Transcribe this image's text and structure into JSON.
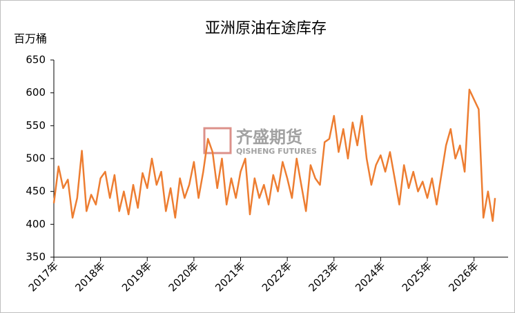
{
  "chart_data": {
    "type": "line",
    "title": "亚洲原油在途库存",
    "y_label": "百万桶",
    "watermark": {
      "name": "齐盛期货",
      "en": "QISHENG FUTURES"
    },
    "x": [
      2017.0,
      2017.1,
      2017.2,
      2017.3,
      2017.4,
      2017.5,
      2017.6,
      2017.7,
      2017.8,
      2017.9,
      2018.0,
      2018.1,
      2018.2,
      2018.3,
      2018.4,
      2018.5,
      2018.6,
      2018.7,
      2018.8,
      2018.9,
      2019.0,
      2019.1,
      2019.2,
      2019.3,
      2019.4,
      2019.5,
      2019.6,
      2019.7,
      2019.8,
      2019.9,
      2020.0,
      2020.1,
      2020.2,
      2020.3,
      2020.4,
      2020.5,
      2020.6,
      2020.7,
      2020.8,
      2020.9,
      2021.0,
      2021.1,
      2021.2,
      2021.3,
      2021.4,
      2021.5,
      2021.6,
      2021.7,
      2021.8,
      2021.9,
      2022.0,
      2022.1,
      2022.2,
      2022.3,
      2022.4,
      2022.5,
      2022.6,
      2022.7,
      2022.8,
      2022.9,
      2023.0,
      2023.1,
      2023.2,
      2023.3,
      2023.4,
      2023.5,
      2023.6,
      2023.7,
      2023.8,
      2023.9,
      2024.0,
      2024.1,
      2024.2,
      2024.3,
      2024.4,
      2024.5,
      2024.6,
      2024.7,
      2024.8,
      2024.9,
      2025.0,
      2025.1,
      2025.2,
      2025.3,
      2025.4,
      2025.5,
      2025.6,
      2025.7,
      2025.8,
      2025.9,
      2026.0,
      2026.1,
      2026.2,
      2026.3,
      2026.4,
      2026.45
    ],
    "series": [
      {
        "name": "亚洲原油在途库存",
        "color": "#ed7d31",
        "values": [
          432,
          488,
          455,
          468,
          410,
          440,
          512,
          420,
          445,
          430,
          470,
          480,
          440,
          475,
          420,
          450,
          415,
          460,
          425,
          478,
          455,
          500,
          460,
          480,
          420,
          455,
          410,
          470,
          440,
          460,
          495,
          440,
          480,
          530,
          510,
          455,
          500,
          430,
          470,
          440,
          480,
          500,
          415,
          470,
          440,
          460,
          430,
          475,
          450,
          495,
          470,
          440,
          500,
          460,
          420,
          490,
          470,
          460,
          525,
          530,
          565,
          510,
          545,
          500,
          555,
          520,
          565,
          500,
          460,
          490,
          505,
          480,
          510,
          470,
          430,
          490,
          455,
          480,
          450,
          465,
          440,
          470,
          430,
          475,
          520,
          545,
          500,
          520,
          480,
          605,
          590,
          575,
          410,
          450,
          405,
          440
        ]
      }
    ],
    "xlim": [
      2017,
      2026.73
    ],
    "xticks": [
      {
        "value": 2017,
        "label": "2017年"
      },
      {
        "value": 2018,
        "label": "2018年"
      },
      {
        "value": 2019,
        "label": "2019年"
      },
      {
        "value": 2020,
        "label": "2020年"
      },
      {
        "value": 2021,
        "label": "2021年"
      },
      {
        "value": 2022,
        "label": "2022年"
      },
      {
        "value": 2023,
        "label": "2023年"
      },
      {
        "value": 2024,
        "label": "2024年"
      },
      {
        "value": 2025,
        "label": "2025年"
      },
      {
        "value": 2026,
        "label": "2026年"
      }
    ],
    "ylim": [
      350,
      650
    ],
    "yticks": [
      350,
      400,
      450,
      500,
      550,
      600,
      650
    ],
    "grid": false
  }
}
